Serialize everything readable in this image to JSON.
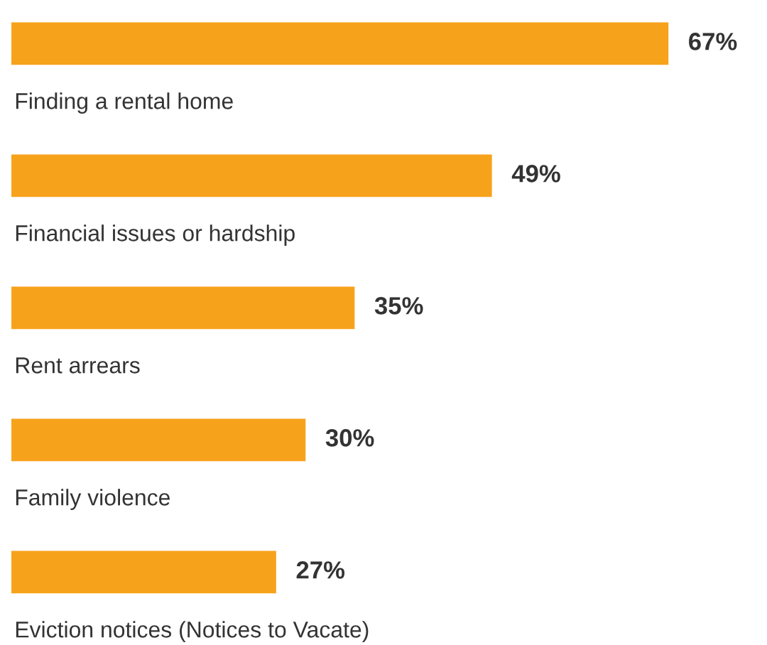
{
  "chart_data": {
    "type": "bar",
    "orientation": "horizontal",
    "categories": [
      "Finding a rental home",
      "Financial issues or hardship",
      "Rent arrears",
      "Family violence",
      "Eviction notices (Notices to Vacate)"
    ],
    "values": [
      67,
      49,
      35,
      30,
      27
    ],
    "value_labels": [
      "67%",
      "49%",
      "35%",
      "30%",
      "27%"
    ],
    "color": "#f7a21b"
  }
}
